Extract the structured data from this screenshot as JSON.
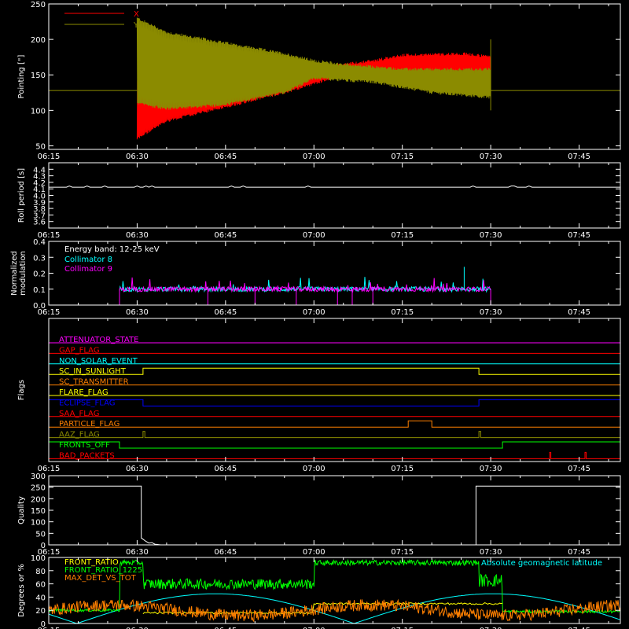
{
  "time_ticks": [
    "06:15",
    "06:30",
    "06:45",
    "07:00",
    "07:15",
    "07:30",
    "07:45"
  ],
  "colors": {
    "background": "#000000",
    "axes": "#ffffff",
    "x": "#ff0000",
    "y": "#8b8b00",
    "white": "#ffffff",
    "cyan": "#00ffff",
    "magenta": "#ff00ff",
    "green": "#00ff00",
    "orange": "#ff8000",
    "yellow": "#ffff00",
    "blue": "#0000ff",
    "red": "#ff0000",
    "olive": "#8b8b00"
  },
  "chart_data": [
    {
      "type": "line",
      "id": "pointing",
      "ylabel": "Pointing [\"]",
      "ylim": [
        45,
        250
      ],
      "yticks": [
        50,
        100,
        150,
        200,
        250
      ],
      "xlim_minutes": [
        0,
        97
      ],
      "legend": [
        {
          "name": "X",
          "color": "#ff0000"
        },
        {
          "name": "Y",
          "color": "#8b8b00"
        }
      ],
      "series": [
        {
          "name": "X",
          "baseline": 128,
          "envelope_upper": [
            [
              15,
              118
            ],
            [
              15,
              140
            ],
            [
              25,
              145
            ],
            [
              40,
              155
            ],
            [
              55,
              170
            ],
            [
              60,
              178
            ],
            [
              70,
              180
            ],
            [
              75,
              176
            ]
          ],
          "envelope_lower": [
            [
              15,
              60
            ],
            [
              20,
              85
            ],
            [
              30,
              105
            ],
            [
              40,
              125
            ],
            [
              50,
              150
            ],
            [
              55,
              155
            ],
            [
              70,
              155
            ],
            [
              75,
              150
            ]
          ]
        },
        {
          "name": "Y",
          "baseline": 128,
          "envelope_upper": [
            [
              15,
              230
            ],
            [
              20,
              210
            ],
            [
              30,
              195
            ],
            [
              40,
              180
            ],
            [
              45,
              170
            ],
            [
              50,
              165
            ],
            [
              60,
              158
            ],
            [
              75,
              158
            ]
          ],
          "envelope_lower": [
            [
              15,
              110
            ],
            [
              20,
              102
            ],
            [
              30,
              108
            ],
            [
              40,
              125
            ],
            [
              45,
              145
            ],
            [
              55,
              140
            ],
            [
              65,
              125
            ],
            [
              75,
              118
            ]
          ]
        }
      ]
    },
    {
      "type": "line",
      "id": "roll",
      "ylabel": "Roll period [s]",
      "ylim": [
        3.5,
        4.5
      ],
      "yticks": [
        3.6,
        3.7,
        3.8,
        3.9,
        4.0,
        4.1,
        4.2,
        4.3,
        4.4
      ],
      "series": [
        {
          "name": "",
          "value": 4.13,
          "x_range": [
            0,
            97
          ]
        }
      ]
    },
    {
      "type": "line",
      "id": "modulation",
      "ylabel": "Normalized modulation",
      "ylim": [
        0,
        0.4
      ],
      "yticks": [
        0.0,
        0.1,
        0.2,
        0.3,
        0.4
      ],
      "annotation": "Energy band: 12-25 keV",
      "series": [
        {
          "name": "Collimator 8",
          "color": "#00ffff",
          "active_range": [
            12,
            75
          ],
          "mean": 0.1
        },
        {
          "name": "Collimator 9",
          "color": "#ff00ff",
          "active_range": [
            12,
            75
          ],
          "mean": 0.1
        }
      ]
    },
    {
      "type": "line",
      "id": "flags",
      "ylabel": "Flags",
      "series": [
        {
          "name": "ATTENUATOR_STATE",
          "color": "#ff00ff",
          "segments": [
            [
              0,
              0
            ],
            [
              97,
              0
            ]
          ]
        },
        {
          "name": "GAP_FLAG",
          "color": "#ff0000",
          "segments": [
            [
              0,
              0
            ],
            [
              97,
              0
            ]
          ]
        },
        {
          "name": "NON_SOLAR_EVENT",
          "color": "#00ffff",
          "segments": [
            [
              0,
              0
            ],
            [
              97,
              0
            ]
          ]
        },
        {
          "name": "SC_IN_SUNLIGHT",
          "color": "#ffff00",
          "segments": [
            [
              0,
              0
            ],
            [
              16,
              0
            ],
            [
              16,
              1
            ],
            [
              73,
              1
            ],
            [
              73,
              0
            ],
            [
              97,
              0
            ]
          ]
        },
        {
          "name": "SC_TRANSMITTER",
          "color": "#ff8000",
          "segments": [
            [
              0,
              0
            ],
            [
              97,
              0
            ]
          ]
        },
        {
          "name": "FLARE_FLAG",
          "color": "#ffff00",
          "segments": [
            [
              0,
              0
            ],
            [
              97,
              0
            ]
          ]
        },
        {
          "name": "ECLIPSE_FLAG",
          "color": "#0000ff",
          "segments": [
            [
              0,
              1
            ],
            [
              16,
              1
            ],
            [
              16,
              0
            ],
            [
              73,
              0
            ],
            [
              73,
              1
            ],
            [
              97,
              1
            ]
          ]
        },
        {
          "name": "SAA_FLAG",
          "color": "#ff0000",
          "segments": [
            [
              0,
              0
            ],
            [
              97,
              0
            ]
          ]
        },
        {
          "name": "PARTICLE_FLAG",
          "color": "#ff8000",
          "segments": [
            [
              0,
              0
            ],
            [
              61,
              0
            ],
            [
              61,
              1
            ],
            [
              65,
              1
            ],
            [
              65,
              0
            ],
            [
              97,
              0
            ]
          ]
        },
        {
          "name": "AAZ_FLAG",
          "color": "#8b8b00",
          "segments": [
            [
              0,
              0
            ],
            [
              16,
              0
            ],
            [
              16,
              1
            ],
            [
              16.3,
              1
            ],
            [
              16.3,
              0
            ],
            [
              73,
              0
            ],
            [
              73,
              1
            ],
            [
              73.3,
              1
            ],
            [
              73.3,
              0
            ],
            [
              97,
              0
            ]
          ]
        },
        {
          "name": "FRONTS_OFF",
          "color": "#00ff00",
          "segments": [
            [
              0,
              1
            ],
            [
              12,
              1
            ],
            [
              12,
              0
            ],
            [
              77,
              0
            ],
            [
              77,
              1
            ],
            [
              97,
              1
            ]
          ]
        },
        {
          "name": "BAD_PACKETS",
          "color": "#ff0000",
          "segments": [
            [
              0,
              0
            ],
            [
              85,
              0
            ],
            [
              85,
              1
            ],
            [
              85.2,
              1
            ],
            [
              85.2,
              0
            ],
            [
              91,
              0
            ],
            [
              91,
              1
            ],
            [
              91.2,
              1
            ],
            [
              91.2,
              0
            ],
            [
              97,
              0
            ]
          ]
        }
      ]
    },
    {
      "type": "line",
      "id": "quality",
      "ylabel": "Quality",
      "ylim": [
        0,
        300
      ],
      "yticks": [
        0,
        50,
        100,
        150,
        200,
        250,
        300
      ],
      "series": [
        {
          "name": "",
          "points": [
            [
              0,
              255
            ],
            [
              15.7,
              255
            ],
            [
              15.7,
              30
            ],
            [
              16.5,
              15
            ],
            [
              17,
              8
            ],
            [
              17.5,
              10
            ],
            [
              18,
              3
            ],
            [
              19,
              0
            ],
            [
              72.5,
              0
            ],
            [
              72.5,
              255
            ],
            [
              97,
              255
            ]
          ]
        }
      ]
    },
    {
      "type": "line",
      "id": "degrees",
      "ylabel": "Degrees or %",
      "ylim": [
        0,
        100
      ],
      "yticks": [
        0,
        20,
        40,
        60,
        80,
        100
      ],
      "series": [
        {
          "name": "FRONT_RATIO",
          "color": "#ffff00"
        },
        {
          "name": "FRONT_RATIO_1225",
          "color": "#00ff00"
        },
        {
          "name": "MAX_DET_VS_TOT",
          "color": "#ff8000"
        },
        {
          "name": "Absolute geomagnetic latitude",
          "color": "#00ffff"
        }
      ]
    }
  ]
}
